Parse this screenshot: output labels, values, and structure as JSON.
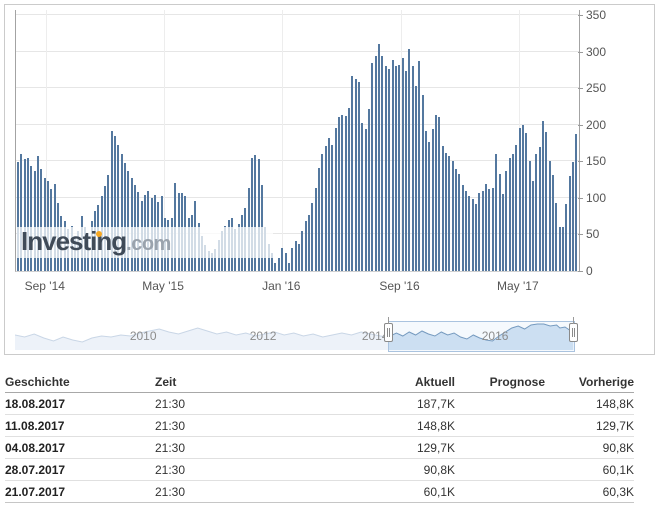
{
  "watermark": {
    "brand_main": "Investing",
    "brand_suffix": ".com"
  },
  "chart_data": {
    "type": "bar",
    "title": "",
    "unit": "K",
    "ylim": [
      0,
      350
    ],
    "y_ticks": [
      0,
      50,
      100,
      150,
      200,
      250,
      300,
      350
    ],
    "x_tick_labels": [
      "Sep '14",
      "May '15",
      "Jan '16",
      "Sep '16",
      "May '17"
    ],
    "x_tick_positions_pct": [
      5.3,
      26.3,
      47.3,
      68.3,
      89.3
    ],
    "bar_color": "#54789f",
    "grid": true,
    "legend": "none",
    "values": [
      149,
      160,
      153,
      155,
      143,
      137,
      157,
      139,
      127,
      123,
      112,
      119,
      93,
      75,
      68,
      58,
      62,
      48,
      55,
      75,
      60,
      52,
      68,
      82,
      90,
      103,
      116,
      131,
      192,
      185,
      172,
      160,
      148,
      137,
      127,
      118,
      108,
      96,
      104,
      110,
      100,
      104,
      95,
      102,
      73,
      70,
      72,
      120,
      107,
      107,
      103,
      73,
      77,
      96,
      66,
      48,
      35,
      28,
      25,
      30,
      42,
      55,
      62,
      70,
      73,
      57,
      64,
      77,
      86,
      114,
      155,
      158,
      153,
      118,
      60,
      37,
      25,
      11,
      18,
      32,
      25,
      11,
      32,
      41,
      37,
      55,
      68,
      77,
      93,
      114,
      141,
      160,
      171,
      182,
      173,
      196,
      210,
      214,
      212,
      223,
      266,
      262,
      259,
      203,
      194,
      221,
      285,
      294,
      310,
      294,
      280,
      276,
      289,
      280,
      282,
      291,
      273,
      303,
      280,
      253,
      287,
      241,
      191,
      176,
      194,
      214,
      210,
      171,
      162,
      157,
      151,
      139,
      133,
      117,
      110,
      103,
      98,
      92,
      107,
      110,
      119,
      112,
      114,
      160,
      133,
      105,
      137,
      155,
      160,
      173,
      196,
      200,
      189,
      151,
      123,
      160,
      169,
      205,
      190,
      151,
      132,
      93,
      60,
      60,
      91,
      130,
      149,
      188
    ]
  },
  "navigator": {
    "year_labels": [
      {
        "label": "2010",
        "pct": 20.0
      },
      {
        "label": "2012",
        "pct": 38.7
      },
      {
        "label": "2014",
        "pct": 56.2
      },
      {
        "label": "2016",
        "pct": 74.9
      }
    ],
    "selection": {
      "start_pct": 58.2,
      "end_pct": 87.1
    },
    "left_profile": [
      [
        0,
        15
      ],
      [
        1.5,
        17
      ],
      [
        3,
        14
      ],
      [
        4.5,
        18
      ],
      [
        6,
        21
      ],
      [
        7.5,
        17
      ],
      [
        9,
        20
      ],
      [
        10.5,
        22
      ],
      [
        12,
        18
      ],
      [
        13.5,
        16
      ],
      [
        15,
        17
      ],
      [
        16.5,
        15
      ],
      [
        18,
        16
      ],
      [
        19.5,
        13
      ],
      [
        21,
        11
      ],
      [
        22.5,
        9
      ],
      [
        24,
        12
      ],
      [
        25.5,
        14
      ],
      [
        27,
        11
      ],
      [
        28.5,
        8
      ],
      [
        30,
        11
      ],
      [
        31.5,
        14
      ],
      [
        33,
        12
      ],
      [
        34.5,
        15
      ],
      [
        36,
        13
      ],
      [
        37.5,
        16
      ],
      [
        39,
        14
      ],
      [
        40.5,
        12
      ],
      [
        42,
        15
      ],
      [
        43.5,
        13
      ],
      [
        45,
        16
      ],
      [
        46.5,
        14
      ],
      [
        48,
        17
      ],
      [
        49.5,
        15
      ],
      [
        51,
        13
      ],
      [
        52.5,
        15
      ],
      [
        54,
        12
      ],
      [
        55.5,
        14
      ],
      [
        57,
        16
      ],
      [
        58.2,
        17
      ]
    ],
    "right_profile": [
      [
        58.2,
        17
      ],
      [
        59.5,
        13
      ],
      [
        60.5,
        16
      ],
      [
        61.5,
        12
      ],
      [
        62.5,
        15
      ],
      [
        63.5,
        11
      ],
      [
        64.5,
        14
      ],
      [
        65.5,
        16
      ],
      [
        66.5,
        12
      ],
      [
        67.5,
        15
      ],
      [
        68.5,
        13
      ],
      [
        69.5,
        17
      ],
      [
        70.5,
        19
      ],
      [
        71.5,
        15
      ],
      [
        72.5,
        18
      ],
      [
        73.5,
        20
      ],
      [
        74.5,
        21
      ],
      [
        75.5,
        16
      ],
      [
        76.5,
        12
      ],
      [
        77.5,
        8
      ],
      [
        78.5,
        6
      ],
      [
        79.5,
        9
      ],
      [
        80.5,
        5
      ],
      [
        81.5,
        4
      ],
      [
        82.5,
        4
      ],
      [
        83.5,
        6
      ],
      [
        84.5,
        5
      ],
      [
        85,
        8
      ],
      [
        85.8,
        7
      ],
      [
        86.5,
        10
      ],
      [
        87.1,
        13
      ]
    ]
  },
  "table": {
    "headers": [
      "Geschichte",
      "Zeit",
      "Aktuell",
      "Prognose",
      "Vorherige"
    ],
    "rows": [
      [
        "18.08.2017",
        "21:30",
        "187,7K",
        "",
        "148,8K"
      ],
      [
        "11.08.2017",
        "21:30",
        "148,8K",
        "",
        "129,7K"
      ],
      [
        "04.08.2017",
        "21:30",
        "129,7K",
        "",
        "90,8K"
      ],
      [
        "28.07.2017",
        "21:30",
        "90,8K",
        "",
        "60,1K"
      ],
      [
        "21.07.2017",
        "21:30",
        "60,1K",
        "",
        "60,3K"
      ]
    ]
  }
}
